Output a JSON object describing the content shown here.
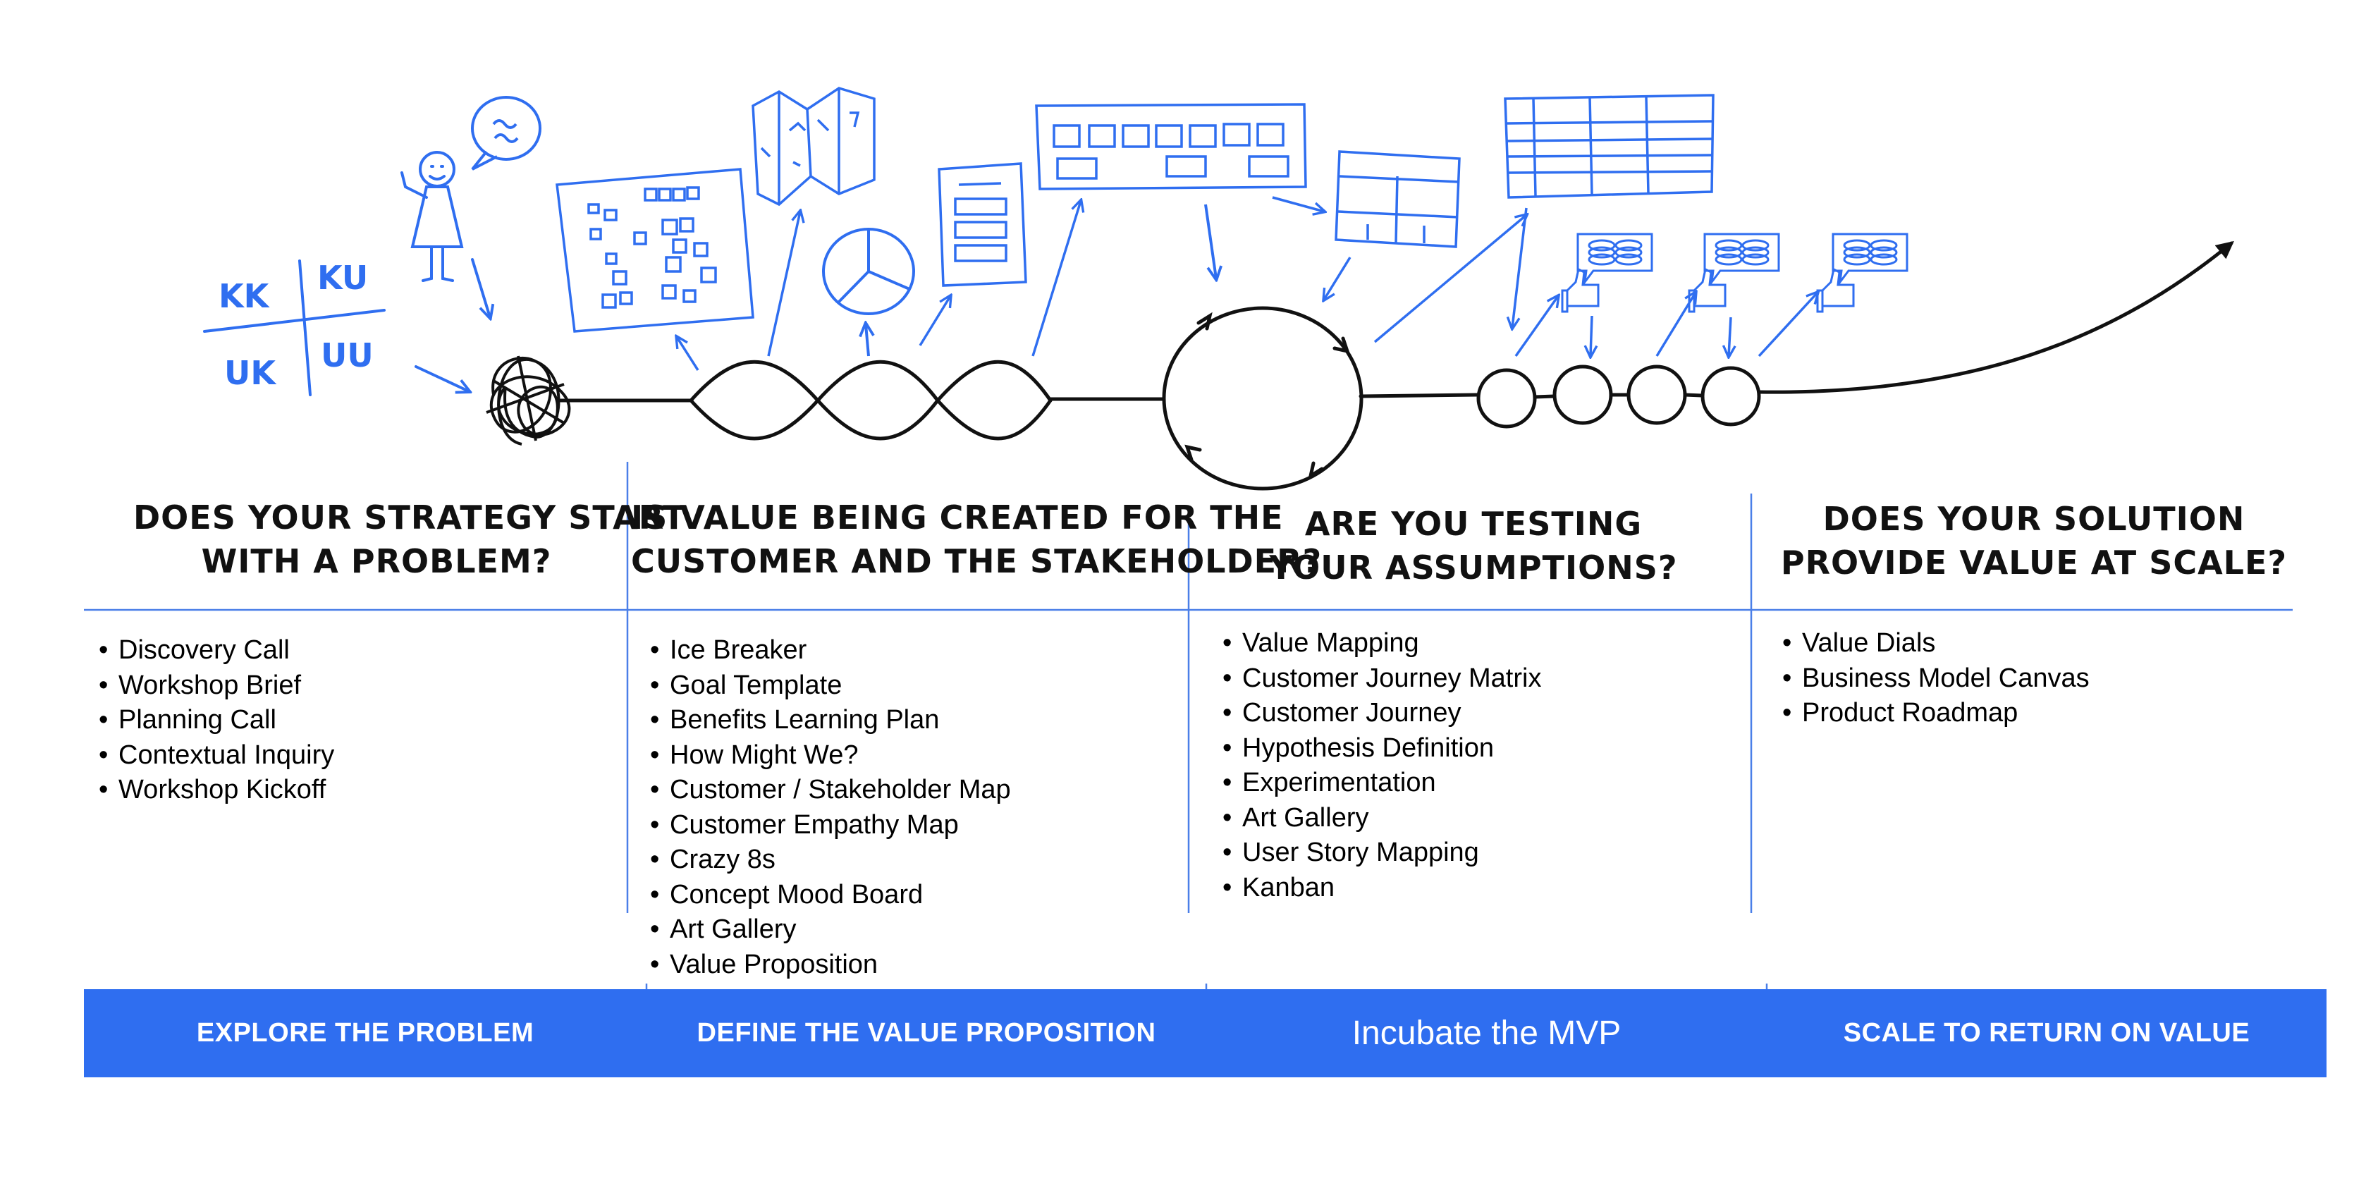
{
  "accent_color": "#2f6ef0",
  "knowledge_matrix": {
    "top_left": "KK",
    "top_right": "KU",
    "bottom_left": "UK",
    "bottom_right": "UU"
  },
  "columns": [
    {
      "question_lines": [
        "Does your strategy start",
        "with a problem?"
      ],
      "items": [
        "Discovery Call",
        "Workshop Brief",
        "Planning Call",
        "Contextual Inquiry",
        "Workshop Kickoff"
      ],
      "phase": "EXPLORE THE PROBLEM"
    },
    {
      "question_lines": [
        "Is value being created for the",
        "customer and the stakeholder?"
      ],
      "items": [
        "Ice Breaker",
        "Goal Template",
        "Benefits Learning Plan",
        "How Might We?",
        "Customer / Stakeholder Map",
        "Customer Empathy Map",
        "Crazy 8s",
        "Concept Mood Board",
        "Art Gallery",
        "Value Proposition"
      ],
      "phase": "DEFINE THE VALUE PROPOSITION"
    },
    {
      "question_lines": [
        "Are you testing",
        "your assumptions?"
      ],
      "items": [
        "Value Mapping",
        "Customer Journey Matrix",
        "Customer Journey",
        "Hypothesis Definition",
        "Experimentation",
        "Art Gallery",
        "User Story Mapping",
        "Kanban"
      ],
      "phase": "Incubate the MVP"
    },
    {
      "question_lines": [
        "Does your solution",
        "provide value at scale?"
      ],
      "items": [
        "Value Dials",
        "Business Model Canvas",
        "Product Roadmap"
      ],
      "phase": "SCALE TO RETURN ON VALUE"
    }
  ]
}
